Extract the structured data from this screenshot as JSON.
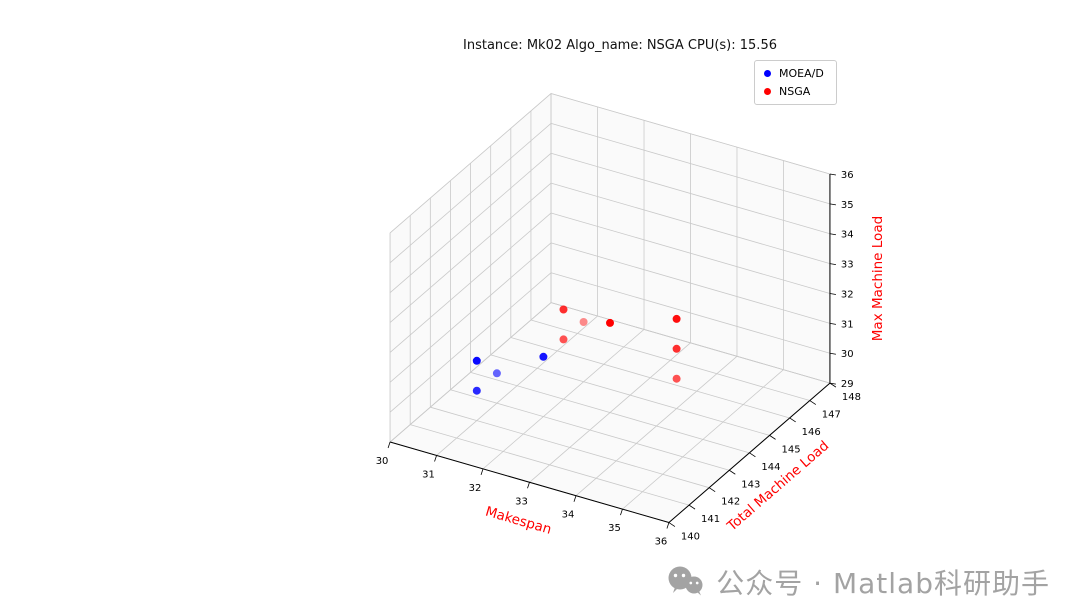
{
  "title": "Instance: Mk02 Algo_name: NSGA CPU(s): 15.56",
  "legend": {
    "entries": [
      {
        "label": "MOEA/D",
        "color": "#0000ff"
      },
      {
        "label": "NSGA",
        "color": "#ff0000"
      }
    ]
  },
  "watermark": {
    "text": "公众号 · Matlab科研助手",
    "color": "#a3a3a3"
  },
  "chart_data": {
    "type": "scatter",
    "projection": "3d",
    "title": "Instance: Mk02 Algo_name: NSGA CPU(s): 15.56",
    "xlabel": "Makespan",
    "ylabel": "Total Machine Load",
    "zlabel": "Max Machine Load",
    "axis_label_color": "#ff0000",
    "tick_color": "#000000",
    "grid_color": "#c9c9c9",
    "grid": true,
    "legend_position": "upper right",
    "xlim": [
      30,
      36
    ],
    "ylim": [
      140,
      148
    ],
    "zlim": [
      29,
      36
    ],
    "xticks": [
      30,
      31,
      32,
      33,
      34,
      35,
      36
    ],
    "yticks": [
      140,
      141,
      142,
      143,
      144,
      145,
      146,
      147,
      148
    ],
    "zticks": [
      29,
      30,
      31,
      32,
      33,
      34,
      35,
      36
    ],
    "view": {
      "elev": 30,
      "azim": -60
    },
    "series": [
      {
        "name": "MOEA/D",
        "color": "#0000ff",
        "points": [
          [
            31,
            142,
            31
          ],
          [
            31,
            143,
            30
          ],
          [
            32,
            143,
            31
          ],
          [
            31,
            142,
            30
          ]
        ]
      },
      {
        "name": "NSGA",
        "color": "#ff0000",
        "points": [
          [
            32,
            144,
            32
          ],
          [
            32,
            144,
            31
          ],
          [
            32,
            145,
            31
          ],
          [
            33,
            144,
            32
          ],
          [
            34,
            145,
            32
          ],
          [
            34,
            145,
            31
          ],
          [
            34,
            145,
            30
          ]
        ]
      }
    ]
  }
}
